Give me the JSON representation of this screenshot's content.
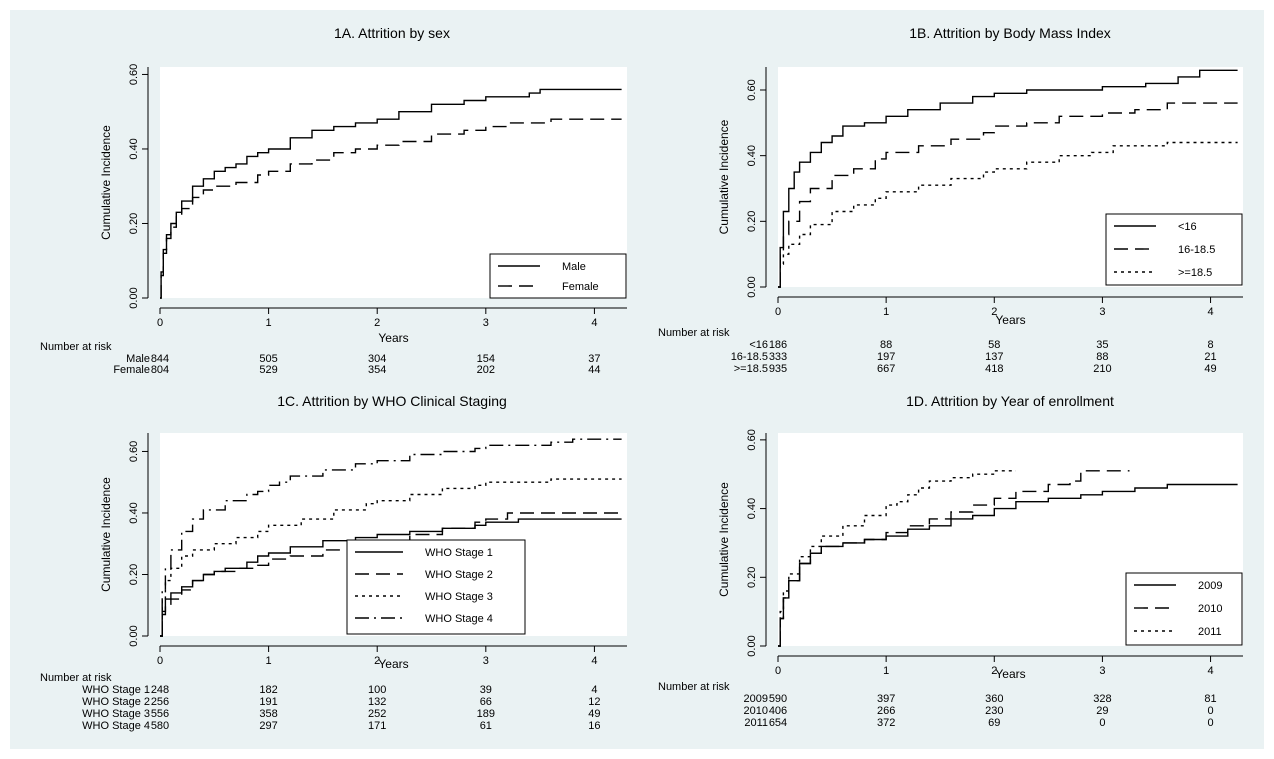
{
  "chart_data": [
    {
      "type": "line",
      "title": "1A. Attrition by sex",
      "xlabel": "Years",
      "ylabel": "Cumulative Incidence",
      "xlim": [
        0,
        4.3
      ],
      "ylim": [
        0,
        0.62
      ],
      "xticks": [
        "0",
        "1",
        "2",
        "3",
        "4"
      ],
      "yticks": [
        "0.00",
        "0.20",
        "0.40",
        "0.60"
      ],
      "legend_position": "bottom-right",
      "series": [
        {
          "name": "Male",
          "dash": "solid",
          "x": [
            0,
            0.01,
            0.03,
            0.06,
            0.1,
            0.15,
            0.2,
            0.3,
            0.4,
            0.5,
            0.6,
            0.7,
            0.8,
            0.9,
            1.0,
            1.2,
            1.4,
            1.6,
            1.8,
            2.0,
            2.2,
            2.5,
            2.8,
            3.0,
            3.2,
            3.4,
            3.5,
            4.25
          ],
          "y": [
            0,
            0.07,
            0.13,
            0.17,
            0.2,
            0.23,
            0.26,
            0.3,
            0.32,
            0.34,
            0.35,
            0.36,
            0.38,
            0.39,
            0.4,
            0.43,
            0.45,
            0.46,
            0.47,
            0.48,
            0.5,
            0.52,
            0.53,
            0.54,
            0.54,
            0.55,
            0.56,
            0.56
          ]
        },
        {
          "name": "Female",
          "dash": "long",
          "x": [
            0,
            0.01,
            0.03,
            0.06,
            0.1,
            0.15,
            0.2,
            0.3,
            0.4,
            0.5,
            0.7,
            0.9,
            1.0,
            1.2,
            1.4,
            1.6,
            1.8,
            2.0,
            2.2,
            2.5,
            2.8,
            3.0,
            3.2,
            3.4,
            3.6,
            4.25
          ],
          "y": [
            0,
            0.06,
            0.12,
            0.16,
            0.19,
            0.22,
            0.24,
            0.27,
            0.29,
            0.3,
            0.31,
            0.33,
            0.34,
            0.36,
            0.37,
            0.39,
            0.4,
            0.41,
            0.42,
            0.44,
            0.45,
            0.46,
            0.47,
            0.47,
            0.48,
            0.48
          ]
        }
      ],
      "risk_table": {
        "header": "Number at risk",
        "rows": [
          {
            "label": "Male",
            "values": [
              "844",
              "505",
              "304",
              "154",
              "37"
            ]
          },
          {
            "label": "Female",
            "values": [
              "804",
              "529",
              "354",
              "202",
              "44"
            ]
          }
        ]
      }
    },
    {
      "type": "line",
      "title": "1B. Attrition by Body Mass Index",
      "xlabel": "Years",
      "ylabel": "Cumulative Incidence",
      "xlim": [
        0,
        4.3
      ],
      "ylim": [
        0,
        0.67
      ],
      "xticks": [
        "0",
        "1",
        "2",
        "3",
        "4"
      ],
      "yticks": [
        "0.00",
        "0.20",
        "0.40",
        "0.60"
      ],
      "legend_position": "bottom-right",
      "series": [
        {
          "name": "<16",
          "dash": "solid",
          "x": [
            0,
            0.02,
            0.05,
            0.1,
            0.15,
            0.2,
            0.3,
            0.4,
            0.5,
            0.6,
            0.8,
            1.0,
            1.2,
            1.5,
            1.8,
            2.0,
            2.3,
            2.6,
            3.0,
            3.4,
            3.7,
            3.9,
            4.25
          ],
          "y": [
            0,
            0.12,
            0.23,
            0.3,
            0.35,
            0.38,
            0.41,
            0.44,
            0.46,
            0.49,
            0.5,
            0.52,
            0.54,
            0.56,
            0.58,
            0.59,
            0.6,
            0.6,
            0.61,
            0.62,
            0.64,
            0.66,
            0.66
          ]
        },
        {
          "name": "16-18.5",
          "dash": "long",
          "x": [
            0,
            0.02,
            0.05,
            0.1,
            0.2,
            0.3,
            0.5,
            0.7,
            0.9,
            1.0,
            1.3,
            1.6,
            1.9,
            2.0,
            2.3,
            2.6,
            3.0,
            3.3,
            3.6,
            4.25
          ],
          "y": [
            0,
            0.1,
            0.16,
            0.2,
            0.26,
            0.3,
            0.34,
            0.36,
            0.39,
            0.41,
            0.43,
            0.45,
            0.47,
            0.49,
            0.5,
            0.52,
            0.53,
            0.54,
            0.56,
            0.56
          ]
        },
        {
          "name": ">=18.5",
          "dash": "dot",
          "x": [
            0,
            0.02,
            0.05,
            0.1,
            0.2,
            0.3,
            0.5,
            0.7,
            0.9,
            1.0,
            1.3,
            1.6,
            1.9,
            2.0,
            2.3,
            2.6,
            2.9,
            3.1,
            3.3,
            3.6,
            4.25
          ],
          "y": [
            0,
            0.07,
            0.1,
            0.13,
            0.16,
            0.19,
            0.23,
            0.25,
            0.27,
            0.29,
            0.31,
            0.33,
            0.35,
            0.36,
            0.38,
            0.4,
            0.41,
            0.43,
            0.43,
            0.44,
            0.44
          ]
        }
      ],
      "risk_table": {
        "header": "Number at risk",
        "rows": [
          {
            "label": "<16",
            "values": [
              "186",
              "88",
              "58",
              "35",
              "8"
            ]
          },
          {
            "label": "16-18.5",
            "values": [
              "333",
              "197",
              "137",
              "88",
              "21"
            ]
          },
          {
            "label": ">=18.5",
            "values": [
              "935",
              "667",
              "418",
              "210",
              "49"
            ]
          }
        ]
      }
    },
    {
      "type": "line",
      "title": "1C. Attrition by WHO Clinical Staging",
      "xlabel": "Years",
      "ylabel": "Cumulative Incidence",
      "xlim": [
        0,
        4.3
      ],
      "ylim": [
        0,
        0.66
      ],
      "xticks": [
        "0",
        "1",
        "2",
        "3",
        "4"
      ],
      "yticks": [
        "0.00",
        "0.20",
        "0.40",
        "0.60"
      ],
      "legend_position": "center-right",
      "series": [
        {
          "name": "WHO Stage 1",
          "dash": "solid",
          "x": [
            0,
            0.02,
            0.05,
            0.1,
            0.2,
            0.3,
            0.4,
            0.5,
            0.6,
            0.8,
            0.9,
            1.0,
            1.2,
            1.5,
            1.8,
            2.0,
            2.3,
            2.6,
            2.9,
            3.0,
            3.3,
            4.25
          ],
          "y": [
            0,
            0.08,
            0.12,
            0.14,
            0.16,
            0.18,
            0.2,
            0.21,
            0.22,
            0.24,
            0.26,
            0.27,
            0.29,
            0.31,
            0.32,
            0.33,
            0.34,
            0.35,
            0.36,
            0.37,
            0.38,
            0.38
          ]
        },
        {
          "name": "WHO Stage 2",
          "dash": "long",
          "x": [
            0,
            0.02,
            0.05,
            0.1,
            0.2,
            0.3,
            0.4,
            0.5,
            0.7,
            0.9,
            1.0,
            1.2,
            1.5,
            1.8,
            2.0,
            2.3,
            2.6,
            2.9,
            3.0,
            3.2,
            4.25
          ],
          "y": [
            0,
            0.07,
            0.1,
            0.12,
            0.15,
            0.18,
            0.2,
            0.21,
            0.22,
            0.23,
            0.25,
            0.26,
            0.28,
            0.3,
            0.31,
            0.33,
            0.35,
            0.37,
            0.38,
            0.4,
            0.4
          ]
        },
        {
          "name": "WHO Stage 3",
          "dash": "dot",
          "x": [
            0,
            0.02,
            0.05,
            0.1,
            0.2,
            0.3,
            0.5,
            0.7,
            0.9,
            1.0,
            1.3,
            1.6,
            1.9,
            2.0,
            2.3,
            2.6,
            2.9,
            3.0,
            3.3,
            3.6,
            4.25
          ],
          "y": [
            0,
            0.12,
            0.18,
            0.22,
            0.26,
            0.28,
            0.3,
            0.32,
            0.34,
            0.36,
            0.38,
            0.41,
            0.43,
            0.44,
            0.46,
            0.48,
            0.49,
            0.5,
            0.5,
            0.51,
            0.51
          ]
        },
        {
          "name": "WHO Stage 4",
          "dash": "dashdot",
          "x": [
            0,
            0.02,
            0.05,
            0.1,
            0.2,
            0.3,
            0.4,
            0.6,
            0.8,
            0.9,
            1.0,
            1.1,
            1.2,
            1.5,
            1.8,
            2.0,
            2.3,
            2.6,
            2.9,
            3.0,
            3.3,
            3.6,
            3.8,
            4.25
          ],
          "y": [
            0,
            0.15,
            0.22,
            0.28,
            0.34,
            0.38,
            0.41,
            0.44,
            0.46,
            0.47,
            0.49,
            0.5,
            0.52,
            0.54,
            0.56,
            0.57,
            0.59,
            0.6,
            0.61,
            0.62,
            0.62,
            0.63,
            0.64,
            0.64
          ]
        }
      ],
      "risk_table": {
        "header": "Number at risk",
        "rows": [
          {
            "label": "WHO Stage 1",
            "values": [
              "248",
              "182",
              "100",
              "39",
              "4"
            ]
          },
          {
            "label": "WHO Stage 2",
            "values": [
              "256",
              "191",
              "132",
              "66",
              "12"
            ]
          },
          {
            "label": "WHO Stage 3",
            "values": [
              "556",
              "358",
              "252",
              "189",
              "49"
            ]
          },
          {
            "label": "WHO Stage 4",
            "values": [
              "580",
              "297",
              "171",
              "61",
              "16"
            ]
          }
        ]
      }
    },
    {
      "type": "line",
      "title": "1D. Attrition by Year of enrollment",
      "xlabel": "Years",
      "ylabel": "Cumulative Incidence",
      "xlim": [
        0,
        4.3
      ],
      "ylim": [
        0,
        0.62
      ],
      "xticks": [
        "0",
        "1",
        "2",
        "3",
        "4"
      ],
      "yticks": [
        "0.00",
        "0.20",
        "0.40",
        "0.60"
      ],
      "legend_position": "bottom-right",
      "series": [
        {
          "name": "2009",
          "dash": "solid",
          "x": [
            0,
            0.02,
            0.05,
            0.1,
            0.2,
            0.3,
            0.4,
            0.6,
            0.8,
            1.0,
            1.2,
            1.4,
            1.6,
            1.8,
            2.0,
            2.2,
            2.5,
            2.8,
            3.0,
            3.3,
            3.6,
            4.25
          ],
          "y": [
            0,
            0.08,
            0.14,
            0.19,
            0.24,
            0.27,
            0.29,
            0.3,
            0.31,
            0.32,
            0.34,
            0.35,
            0.37,
            0.38,
            0.4,
            0.42,
            0.43,
            0.44,
            0.45,
            0.46,
            0.47,
            0.47
          ]
        },
        {
          "name": "2010",
          "dash": "long",
          "x": [
            0,
            0.02,
            0.05,
            0.1,
            0.2,
            0.3,
            0.4,
            0.6,
            0.8,
            1.0,
            1.2,
            1.4,
            1.6,
            1.8,
            2.0,
            2.2,
            2.5,
            2.7,
            2.8,
            3.25
          ],
          "y": [
            0,
            0.08,
            0.14,
            0.19,
            0.24,
            0.27,
            0.29,
            0.3,
            0.31,
            0.33,
            0.35,
            0.37,
            0.39,
            0.41,
            0.43,
            0.45,
            0.47,
            0.48,
            0.51,
            0.51
          ]
        },
        {
          "name": "2011",
          "dash": "dot",
          "x": [
            0,
            0.02,
            0.05,
            0.1,
            0.2,
            0.3,
            0.4,
            0.6,
            0.8,
            1.0,
            1.1,
            1.2,
            1.3,
            1.4,
            1.6,
            1.8,
            2.0,
            2.2
          ],
          "y": [
            0,
            0.1,
            0.16,
            0.21,
            0.26,
            0.29,
            0.32,
            0.35,
            0.38,
            0.41,
            0.42,
            0.44,
            0.46,
            0.48,
            0.49,
            0.5,
            0.51,
            0.51
          ]
        }
      ],
      "risk_table": {
        "header": "Number at risk",
        "rows": [
          {
            "label": "2009",
            "values": [
              "590",
              "397",
              "360",
              "328",
              "81"
            ]
          },
          {
            "label": "2010",
            "values": [
              "406",
              "266",
              "230",
              "29",
              "0"
            ]
          },
          {
            "label": "2011",
            "values": [
              "654",
              "372",
              "69",
              "0",
              "0"
            ]
          }
        ]
      }
    }
  ]
}
